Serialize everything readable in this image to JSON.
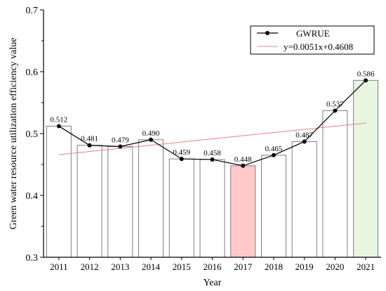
{
  "chart_data": {
    "type": "bar",
    "categories": [
      "2011",
      "2012",
      "2013",
      "2014",
      "2015",
      "2016",
      "2017",
      "2018",
      "2019",
      "2020",
      "2021"
    ],
    "values": [
      0.512,
      0.481,
      0.479,
      0.49,
      0.459,
      0.458,
      0.448,
      0.465,
      0.487,
      0.537,
      0.586
    ],
    "data_labels": [
      "0.512",
      "0.481",
      "0.479",
      "0.490",
      "0.459",
      "0.458",
      "0.448",
      "0.465",
      "0.487",
      "0.537",
      "0.586"
    ],
    "series": [
      {
        "name": "GWRUE",
        "type": "line",
        "marker": "circle",
        "color": "#000000",
        "values": [
          0.512,
          0.481,
          0.479,
          0.49,
          0.459,
          0.458,
          0.448,
          0.465,
          0.487,
          0.537,
          0.586
        ]
      },
      {
        "name": "y=0.0051x+0.4608",
        "type": "trendline",
        "color": "#f08080",
        "slope": 0.0051,
        "intercept": 0.4608
      }
    ],
    "bar_colors": {
      "default": "#ffffff",
      "2017": "#ffc9c9",
      "2021": "#e8f5e0"
    },
    "bar_edge_color": "#7f7f7f",
    "xlabel": "Year",
    "ylabel": "Green water resource utilization efficiency value",
    "ylim": [
      0.3,
      0.7
    ],
    "yticks": [
      "0.3",
      "0.4",
      "0.5",
      "0.6",
      "0.7"
    ],
    "legend_placement": "top-right",
    "grid": false
  }
}
